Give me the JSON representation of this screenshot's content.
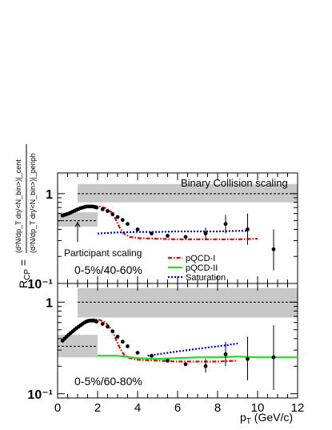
{
  "chart_data": [
    {
      "type": "scatter",
      "panel": "top",
      "title": "",
      "annotations": [
        "Binary Collision scaling",
        "Participant scaling",
        "0-5%/40-60%"
      ],
      "xlim": [
        0,
        12
      ],
      "ylim": [
        0.1,
        1.7
      ],
      "yscale": "log",
      "ytick_labels": [
        "1",
        "10⁻¹"
      ],
      "legend": {
        "placement": "bottom-right",
        "entries": [
          "pQCD-I",
          "pQCD-II",
          "Saturation"
        ]
      },
      "bands": [
        {
          "name": "Binary Collision scaling",
          "x": [
            1.0,
            12.0
          ],
          "y": [
            0.8,
            1.28
          ],
          "center": 1.0,
          "color": "#c8c8c8"
        },
        {
          "name": "Participant scaling",
          "x": [
            0.0,
            2.0
          ],
          "y": [
            0.43,
            0.62
          ],
          "center": 0.5,
          "color": "#c8c8c8"
        }
      ],
      "series": [
        {
          "name": "data",
          "color": "#000000",
          "points": [
            {
              "x": 0.25,
              "y": 0.57
            },
            {
              "x": 0.35,
              "y": 0.58
            },
            {
              "x": 0.45,
              "y": 0.59
            },
            {
              "x": 0.55,
              "y": 0.6
            },
            {
              "x": 0.65,
              "y": 0.615
            },
            {
              "x": 0.75,
              "y": 0.63
            },
            {
              "x": 0.85,
              "y": 0.645
            },
            {
              "x": 0.95,
              "y": 0.66
            },
            {
              "x": 1.05,
              "y": 0.675
            },
            {
              "x": 1.15,
              "y": 0.69
            },
            {
              "x": 1.25,
              "y": 0.7
            },
            {
              "x": 1.35,
              "y": 0.71
            },
            {
              "x": 1.45,
              "y": 0.72
            },
            {
              "x": 1.55,
              "y": 0.72
            },
            {
              "x": 1.65,
              "y": 0.72
            },
            {
              "x": 1.75,
              "y": 0.72
            },
            {
              "x": 1.85,
              "y": 0.71
            },
            {
              "x": 1.95,
              "y": 0.7
            },
            {
              "x": 2.25,
              "y": 0.67
            },
            {
              "x": 2.5,
              "y": 0.64
            },
            {
              "x": 2.75,
              "y": 0.59
            },
            {
              "x": 3.0,
              "y": 0.55
            },
            {
              "x": 3.25,
              "y": 0.51
            },
            {
              "x": 3.5,
              "y": 0.46
            },
            {
              "x": 4.0,
              "y": 0.4
            },
            {
              "x": 4.7,
              "y": 0.36
            },
            {
              "x": 5.5,
              "y": 0.34
            },
            {
              "x": 6.4,
              "y": 0.33
            },
            {
              "x": 7.4,
              "y": 0.36,
              "err": [
                0.31,
                0.42
              ]
            },
            {
              "x": 8.4,
              "y": 0.46,
              "err": [
                0.36,
                0.58
              ]
            },
            {
              "x": 9.5,
              "y": 0.4,
              "err": [
                0.27,
                0.6
              ]
            },
            {
              "x": 10.8,
              "y": 0.24,
              "err": [
                0.14,
                0.4
              ]
            }
          ]
        },
        {
          "name": "pQCD-I",
          "color": "#ee0000",
          "style": "dash-dot",
          "points": [
            [
              0.6,
              0.62
            ],
            [
              1.0,
              0.68
            ],
            [
              1.4,
              0.72
            ],
            [
              1.8,
              0.73
            ],
            [
              2.1,
              0.72
            ],
            [
              2.4,
              0.69
            ],
            [
              2.7,
              0.62
            ],
            [
              2.9,
              0.52
            ],
            [
              3.1,
              0.42
            ],
            [
              3.3,
              0.36
            ],
            [
              3.6,
              0.33
            ],
            [
              4.0,
              0.32
            ],
            [
              5,
              0.315
            ],
            [
              6,
              0.31
            ],
            [
              7,
              0.31
            ],
            [
              8,
              0.31
            ],
            [
              9,
              0.31
            ],
            [
              10,
              0.315
            ]
          ]
        },
        {
          "name": "Saturation",
          "color": "#0000cc",
          "style": "dotted",
          "points": [
            [
              2.0,
              0.36
            ],
            [
              3,
              0.37
            ],
            [
              4,
              0.375
            ],
            [
              5,
              0.375
            ],
            [
              6,
              0.38
            ],
            [
              7,
              0.38
            ],
            [
              8,
              0.38
            ],
            [
              9,
              0.385
            ],
            [
              9.5,
              0.385
            ]
          ]
        }
      ]
    },
    {
      "type": "scatter",
      "panel": "bottom",
      "title": "",
      "annotations": [
        "0-5%/60-80%"
      ],
      "xlabel": "p_T (GeV/c)",
      "xlim": [
        0,
        12
      ],
      "ylim": [
        0.09,
        1.6
      ],
      "yscale": "log",
      "ytick_labels": [
        "1",
        "10⁻¹"
      ],
      "xtick_labels": [
        "0",
        "2",
        "4",
        "6",
        "8",
        "10",
        "12"
      ],
      "bands": [
        {
          "name": "Binary Collision scaling",
          "x": [
            1.0,
            12.0
          ],
          "y": [
            0.68,
            1.42
          ],
          "center": 1.0,
          "color": "#c8c8c8"
        },
        {
          "name": "Participant scaling",
          "x": [
            0.0,
            2.0
          ],
          "y": [
            0.25,
            0.44
          ],
          "center": 0.33,
          "color": "#c8c8c8"
        }
      ],
      "series": [
        {
          "name": "data",
          "color": "#000000",
          "points": [
            {
              "x": 0.25,
              "y": 0.38
            },
            {
              "x": 0.35,
              "y": 0.4
            },
            {
              "x": 0.45,
              "y": 0.42
            },
            {
              "x": 0.55,
              "y": 0.44
            },
            {
              "x": 0.65,
              "y": 0.46
            },
            {
              "x": 0.75,
              "y": 0.48
            },
            {
              "x": 0.85,
              "y": 0.5
            },
            {
              "x": 0.95,
              "y": 0.52
            },
            {
              "x": 1.05,
              "y": 0.54
            },
            {
              "x": 1.15,
              "y": 0.56
            },
            {
              "x": 1.25,
              "y": 0.58
            },
            {
              "x": 1.35,
              "y": 0.6
            },
            {
              "x": 1.45,
              "y": 0.615
            },
            {
              "x": 1.55,
              "y": 0.625
            },
            {
              "x": 1.65,
              "y": 0.63
            },
            {
              "x": 1.75,
              "y": 0.63
            },
            {
              "x": 1.85,
              "y": 0.625
            },
            {
              "x": 1.95,
              "y": 0.615
            },
            {
              "x": 2.25,
              "y": 0.58
            },
            {
              "x": 2.5,
              "y": 0.54
            },
            {
              "x": 2.75,
              "y": 0.48
            },
            {
              "x": 3.0,
              "y": 0.42
            },
            {
              "x": 3.25,
              "y": 0.37
            },
            {
              "x": 3.5,
              "y": 0.33
            },
            {
              "x": 4.0,
              "y": 0.28
            },
            {
              "x": 4.7,
              "y": 0.26
            },
            {
              "x": 5.5,
              "y": 0.23
            },
            {
              "x": 6.4,
              "y": 0.21
            },
            {
              "x": 7.4,
              "y": 0.2,
              "err": [
                0.17,
                0.24
              ]
            },
            {
              "x": 8.4,
              "y": 0.27,
              "err": [
                0.2,
                0.37
              ]
            },
            {
              "x": 9.5,
              "y": 0.24,
              "err": [
                0.14,
                0.42
              ]
            },
            {
              "x": 10.8,
              "y": 0.25,
              "err": [
                0.11,
                0.56
              ]
            }
          ]
        },
        {
          "name": "pQCD-I",
          "color": "#ee0000",
          "style": "dash-dot",
          "points": [
            [
              0.6,
              0.45
            ],
            [
              1.0,
              0.54
            ],
            [
              1.4,
              0.62
            ],
            [
              1.8,
              0.65
            ],
            [
              2.1,
              0.64
            ],
            [
              2.4,
              0.6
            ],
            [
              2.7,
              0.5
            ],
            [
              2.9,
              0.4
            ],
            [
              3.1,
              0.32
            ],
            [
              3.3,
              0.27
            ],
            [
              3.6,
              0.245
            ],
            [
              4.0,
              0.235
            ],
            [
              5,
              0.23
            ],
            [
              6,
              0.225
            ],
            [
              7,
              0.225
            ],
            [
              8,
              0.225
            ],
            [
              9,
              0.23
            ]
          ]
        },
        {
          "name": "pQCD-II",
          "color": "#22dd22",
          "style": "solid",
          "points": [
            [
              2.0,
              0.26
            ],
            [
              3,
              0.26
            ],
            [
              4,
              0.245
            ],
            [
              5,
              0.24
            ],
            [
              6,
              0.245
            ],
            [
              7,
              0.25
            ],
            [
              8,
              0.25
            ],
            [
              9,
              0.255
            ],
            [
              10,
              0.25
            ],
            [
              11,
              0.25
            ],
            [
              12,
              0.25
            ]
          ]
        },
        {
          "name": "Saturation",
          "color": "#0000cc",
          "style": "dotted",
          "points": [
            [
              4.5,
              0.26
            ],
            [
              5.5,
              0.28
            ],
            [
              6.5,
              0.3
            ],
            [
              7.5,
              0.32
            ],
            [
              8.5,
              0.34
            ],
            [
              9.0,
              0.355
            ]
          ]
        }
      ]
    }
  ],
  "ylabel": {
    "prefix": "R",
    "sub": "CP",
    "eq": " = ",
    "numerator": "(d²N/dp_T dη/<N_bin>)|_cent",
    "denominator": "(d²N/dp_T dη/<N_bin>)|_periph"
  },
  "xlabel": {
    "main": "p",
    "sub": "T",
    "rest": " (GeV/c)"
  }
}
